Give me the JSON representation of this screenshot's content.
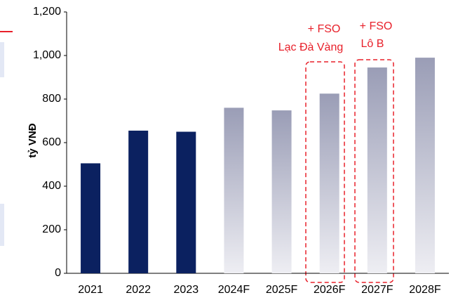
{
  "chart_data": {
    "type": "bar",
    "categories": [
      "2021",
      "2022",
      "2023",
      "2024F",
      "2025F",
      "2026F",
      "2027F",
      "2028F"
    ],
    "values": [
      505,
      655,
      650,
      760,
      748,
      825,
      945,
      990
    ],
    "colors": [
      "#0b2160",
      "#0b2160",
      "#0b2160",
      "#9a9db6",
      "#9a9db6",
      "#9a9db6",
      "#9a9db6",
      "#9a9db6"
    ],
    "ylabel": "tỷ VNĐ",
    "ylim": [
      0,
      1200
    ],
    "yticks": [
      0,
      200,
      400,
      600,
      800,
      {
        "value": 1000,
        "label": "1,000"
      },
      {
        "value": 1200,
        "label": "1,200"
      }
    ],
    "annotations": [
      "+ FSO",
      "Lạc Đà Vàng",
      "+ FSO",
      "Lô B"
    ]
  }
}
